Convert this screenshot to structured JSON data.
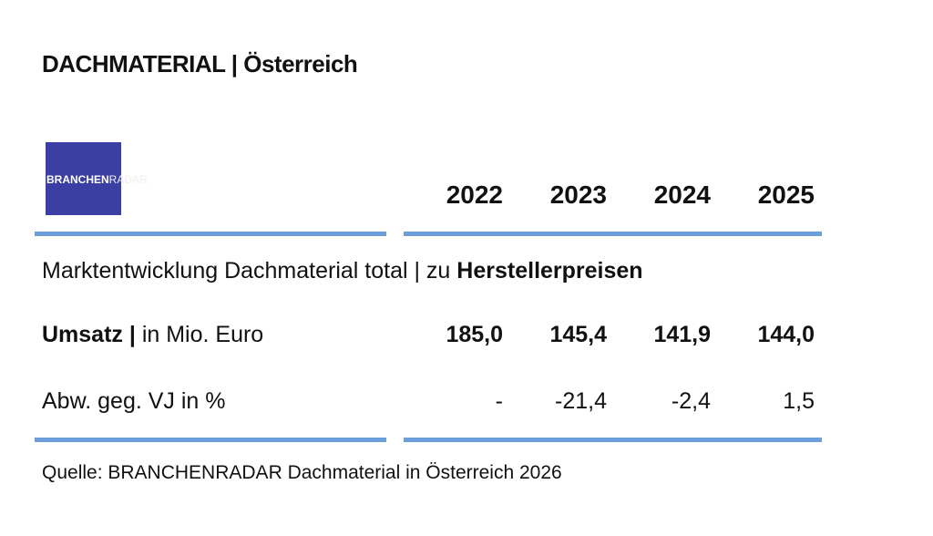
{
  "header": {
    "title": "DACHMATERIAL | Österreich"
  },
  "logo": {
    "part1": "BRANCHEN",
    "part2": "RADAR"
  },
  "table": {
    "columns": [
      "2022",
      "2023",
      "2024",
      "2025"
    ],
    "section": {
      "text": "Marktentwicklung Dachmaterial total | zu",
      "bold": "Herstellerpreisen"
    },
    "rows": [
      {
        "label_bold": "Umsatz |",
        "label": "in Mio. Euro",
        "values": [
          "185,0",
          "145,4",
          "141,9",
          "144,0"
        ]
      },
      {
        "label": "Abw. geg. VJ in %",
        "values": [
          "-",
          "-21,4",
          "-2,4",
          "1,5"
        ]
      }
    ]
  },
  "source": "Quelle: BRANCHENRADAR Dachmaterial in Österreich 2026"
}
